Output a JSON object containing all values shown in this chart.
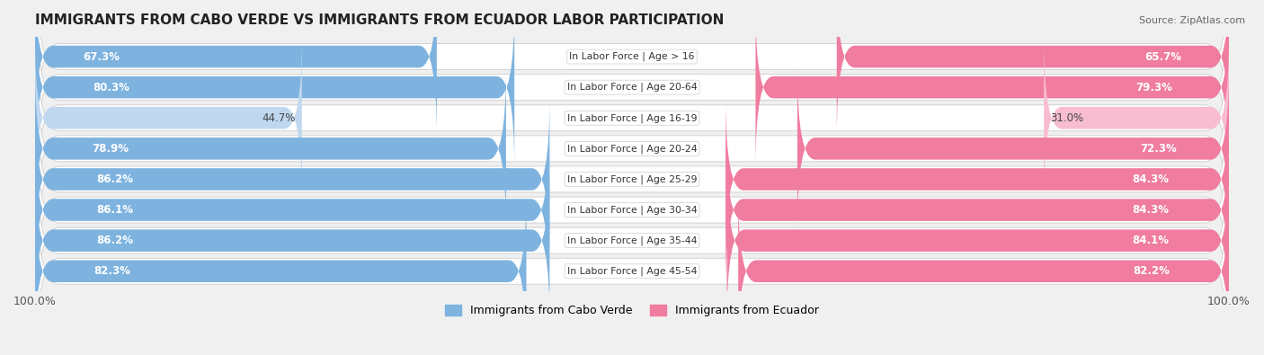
{
  "title": "IMMIGRANTS FROM CABO VERDE VS IMMIGRANTS FROM ECUADOR LABOR PARTICIPATION",
  "source": "Source: ZipAtlas.com",
  "categories": [
    "In Labor Force | Age > 16",
    "In Labor Force | Age 20-64",
    "In Labor Force | Age 16-19",
    "In Labor Force | Age 20-24",
    "In Labor Force | Age 25-29",
    "In Labor Force | Age 30-34",
    "In Labor Force | Age 35-44",
    "In Labor Force | Age 45-54"
  ],
  "cabo_verde_values": [
    67.3,
    80.3,
    44.7,
    78.9,
    86.2,
    86.1,
    86.2,
    82.3
  ],
  "ecuador_values": [
    65.7,
    79.3,
    31.0,
    72.3,
    84.3,
    84.3,
    84.1,
    82.2
  ],
  "cabo_verde_color": "#7EB3DF",
  "cabo_verde_color_light": "#C0D8EF",
  "ecuador_color": "#F07CA0",
  "ecuador_color_light": "#F8BDD0",
  "max_value": 100.0,
  "legend_cabo_verde": "Immigrants from Cabo Verde",
  "legend_ecuador": "Immigrants from Ecuador",
  "bg_color": "#f0f0f0",
  "row_bg_color": "#ffffff",
  "title_fontsize": 11,
  "label_fontsize": 8.5,
  "cat_fontsize": 7.8,
  "tick_fontsize": 9,
  "source_fontsize": 8
}
